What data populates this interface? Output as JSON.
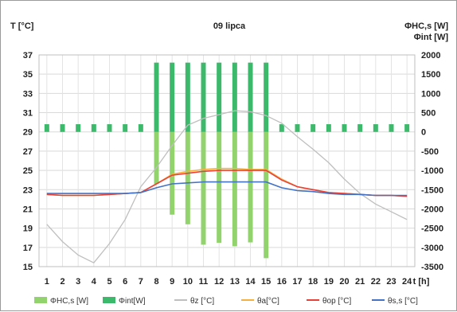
{
  "chart_data": {
    "type": "bar+line",
    "title": "09 lipca",
    "ylabel_left": "T [°C]",
    "ylabel_right_line1": "ΦHC,s [W]",
    "ylabel_right_line2": "Φint   [W]",
    "xlabel": "t [h]",
    "x": [
      1,
      2,
      3,
      4,
      5,
      6,
      7,
      8,
      9,
      10,
      11,
      12,
      13,
      14,
      15,
      16,
      17,
      18,
      19,
      20,
      21,
      22,
      23,
      24
    ],
    "y_left_ticks": [
      15,
      17,
      19,
      21,
      23,
      25,
      27,
      29,
      31,
      33,
      35,
      37
    ],
    "y_left_range": [
      15,
      37
    ],
    "y_right_ticks": [
      -3500,
      -3000,
      -2500,
      -2000,
      -1500,
      -1000,
      -500,
      0,
      500,
      1000,
      1500,
      2000
    ],
    "y_right_range": [
      -3500,
      2000
    ],
    "grid": true,
    "legend_position": "bottom",
    "bar_series": [
      {
        "name": "ΦHC,s [W]",
        "color": "#92d36e",
        "axis": "right",
        "values": [
          0,
          0,
          0,
          0,
          0,
          0,
          0,
          -1350,
          -2150,
          -2400,
          -2930,
          -2880,
          -2970,
          -2870,
          -3280,
          0,
          0,
          0,
          0,
          0,
          0,
          0,
          0,
          0
        ]
      },
      {
        "name": "Φint[W]",
        "color": "#3cb96a",
        "axis": "right",
        "values": [
          200,
          200,
          200,
          200,
          200,
          200,
          200,
          1800,
          1800,
          1800,
          1800,
          1800,
          1800,
          1800,
          1800,
          200,
          200,
          200,
          200,
          200,
          200,
          200,
          200,
          200
        ]
      }
    ],
    "line_series": [
      {
        "name": "θz [°C]",
        "color": "#bfbfbf",
        "axis": "left",
        "values": [
          19.4,
          17.6,
          16.2,
          15.4,
          17.4,
          19.9,
          23.3,
          25.3,
          27.6,
          29.7,
          30.4,
          30.8,
          31.2,
          31.1,
          30.7,
          29.9,
          28.5,
          27.2,
          25.8,
          24.1,
          22.6,
          21.5,
          20.7,
          19.9
        ]
      },
      {
        "name": "θa[°C]",
        "color": "#f5b041",
        "axis": "left",
        "values": [
          22.5,
          22.4,
          22.4,
          22.4,
          22.5,
          22.6,
          22.7,
          23.6,
          24.6,
          24.9,
          25.1,
          25.2,
          25.2,
          25.1,
          25.1,
          24.1,
          23.3,
          23.0,
          22.7,
          22.6,
          22.5,
          22.4,
          22.4,
          22.3
        ]
      },
      {
        "name": "θop [°C]",
        "color": "#e8413a",
        "axis": "left",
        "values": [
          22.5,
          22.4,
          22.4,
          22.4,
          22.5,
          22.6,
          22.7,
          23.6,
          24.5,
          24.7,
          24.9,
          25.0,
          25.0,
          25.0,
          25.0,
          24.0,
          23.3,
          23.0,
          22.7,
          22.6,
          22.5,
          22.4,
          22.4,
          22.3
        ]
      },
      {
        "name": "θs,s [°C]",
        "color": "#4472c4",
        "axis": "left",
        "values": [
          22.6,
          22.6,
          22.6,
          22.6,
          22.6,
          22.6,
          22.7,
          23.2,
          23.6,
          23.7,
          23.8,
          23.8,
          23.8,
          23.8,
          23.8,
          23.2,
          22.9,
          22.8,
          22.6,
          22.5,
          22.5,
          22.4,
          22.4,
          22.4
        ]
      }
    ]
  }
}
